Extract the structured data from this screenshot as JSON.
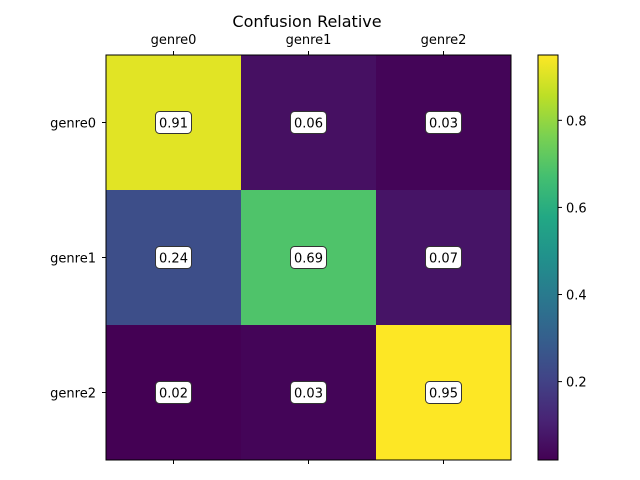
{
  "chart_data": {
    "type": "heatmap",
    "title": "Confusion Relative",
    "x_categories": [
      "genre0",
      "genre1",
      "genre2"
    ],
    "y_categories": [
      "genre0",
      "genre1",
      "genre2"
    ],
    "values": [
      [
        0.91,
        0.06,
        0.03
      ],
      [
        0.24,
        0.69,
        0.07
      ],
      [
        0.02,
        0.03,
        0.95
      ]
    ],
    "colormap": "viridis",
    "colorbar": {
      "range": [
        0.02,
        0.95
      ],
      "ticks": [
        0.2,
        0.4,
        0.6,
        0.8
      ],
      "tick_labels": [
        "0.2",
        "0.4",
        "0.6",
        "0.8"
      ]
    },
    "x_ticks_position": "top"
  }
}
